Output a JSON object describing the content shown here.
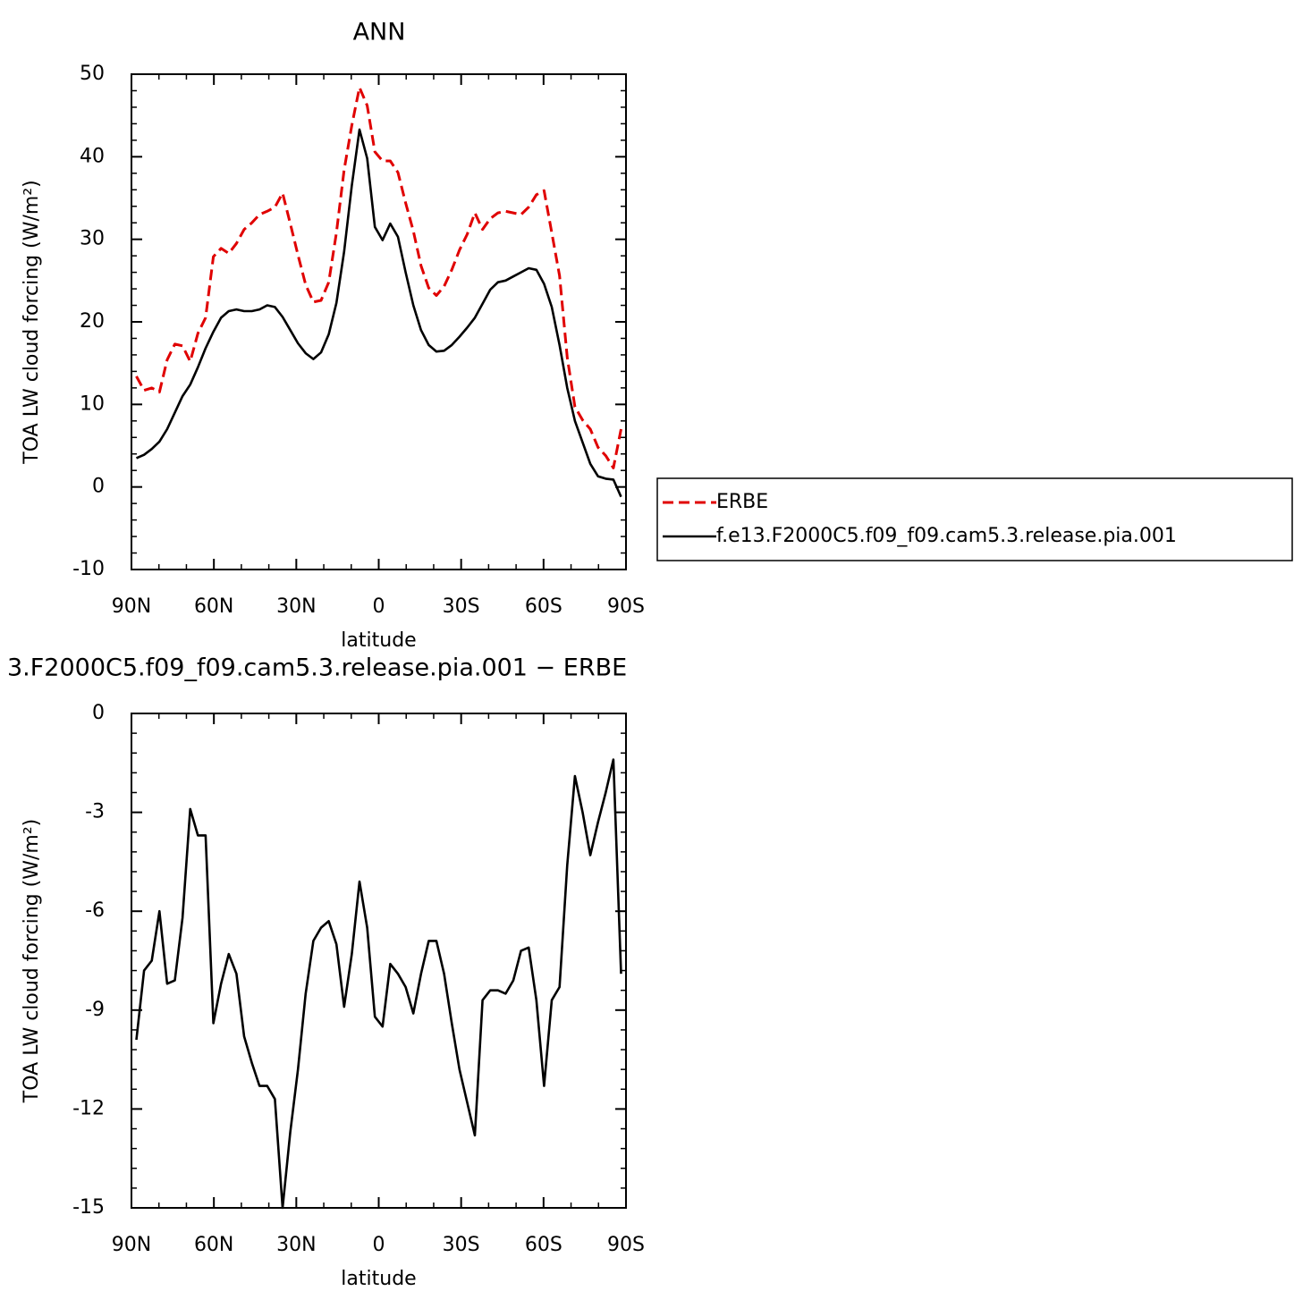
{
  "chart_data": [
    {
      "type": "line",
      "title": "ANN",
      "xlabel": "latitude",
      "ylabel": "TOA LW cloud forcing (W/m²)",
      "x": [
        88.2,
        85.4,
        82.6,
        79.8,
        77.0,
        74.2,
        71.4,
        68.6,
        65.8,
        63.0,
        60.2,
        57.4,
        54.6,
        51.8,
        49.0,
        46.2,
        43.4,
        40.6,
        37.8,
        35.0,
        32.2,
        29.4,
        26.6,
        23.8,
        21.0,
        18.2,
        15.4,
        12.6,
        9.8,
        7.0,
        4.2,
        1.4,
        -1.4,
        -4.2,
        -7.0,
        -9.8,
        -12.6,
        -15.4,
        -18.2,
        -21.0,
        -23.8,
        -26.6,
        -29.4,
        -32.2,
        -35.0,
        -37.8,
        -40.6,
        -43.4,
        -46.2,
        -49.0,
        -51.8,
        -54.6,
        -57.4,
        -60.2,
        -63.0,
        -65.8,
        -68.6,
        -71.4,
        -74.2,
        -77.0,
        -79.8,
        -82.6,
        -85.4,
        -88.2
      ],
      "series": [
        {
          "name": "ERBE",
          "color": "#e00000",
          "dashed": true,
          "values": [
            13.4,
            11.7,
            12.0,
            11.5,
            15.4,
            17.3,
            17.1,
            15.2,
            18.6,
            20.5,
            27.9,
            28.9,
            28.3,
            29.5,
            31.2,
            32.0,
            33.0,
            33.4,
            33.9,
            35.6,
            31.9,
            28.1,
            24.5,
            22.4,
            22.6,
            24.8,
            30.8,
            38.4,
            43.8,
            48.4,
            46.2,
            40.6,
            39.5,
            39.5,
            38.1,
            34.4,
            31.0,
            26.8,
            24.1,
            23.2,
            24.3,
            26.3,
            28.7,
            30.6,
            33.2,
            31.2,
            32.5,
            33.2,
            33.4,
            33.2,
            33.0,
            33.9,
            35.4,
            35.9,
            30.8,
            25.6,
            15.7,
            9.7,
            8.1,
            7.0,
            4.8,
            3.8,
            2.3,
            7.0
          ]
        },
        {
          "name": "f.e13.F2000C5.f09_f09.cam5.3.release.pia.001",
          "color": "#000000",
          "dashed": false,
          "values": [
            3.5,
            3.9,
            4.6,
            5.5,
            7.0,
            9.0,
            11.0,
            12.4,
            14.5,
            16.8,
            18.8,
            20.5,
            21.3,
            21.5,
            21.3,
            21.3,
            21.5,
            22.0,
            21.8,
            20.6,
            19.0,
            17.4,
            16.2,
            15.5,
            16.3,
            18.5,
            22.3,
            28.5,
            36.5,
            43.3,
            39.8,
            31.5,
            29.9,
            31.9,
            30.3,
            26.0,
            22.0,
            19.0,
            17.2,
            16.4,
            16.5,
            17.2,
            18.2,
            19.3,
            20.5,
            22.2,
            23.9,
            24.8,
            25.0,
            25.5,
            26.0,
            26.5,
            26.3,
            24.6,
            21.8,
            17.2,
            12.0,
            8.0,
            5.4,
            2.8,
            1.3,
            1.0,
            0.9,
            -1.2
          ]
        }
      ],
      "xlim": [
        90,
        -90
      ],
      "xticks": [
        {
          "value": 90,
          "label": "90N"
        },
        {
          "value": 60,
          "label": "60N"
        },
        {
          "value": 30,
          "label": "30N"
        },
        0,
        {
          "value": -30,
          "label": "30S"
        },
        {
          "value": -60,
          "label": "60S"
        },
        {
          "value": -90,
          "label": "90S"
        }
      ],
      "xminorticks": [
        80,
        70,
        50,
        40,
        20,
        10,
        -10,
        -20,
        -40,
        -50,
        -70,
        -80
      ],
      "ylim": [
        -10,
        50
      ],
      "yticks": [
        -10,
        0,
        10,
        20,
        30,
        40,
        50
      ],
      "yminorticks": [
        -8,
        -6,
        -4,
        -2,
        2,
        4,
        6,
        8,
        12,
        14,
        16,
        18,
        22,
        24,
        26,
        28,
        32,
        34,
        36,
        38,
        42,
        44,
        46,
        48
      ],
      "legend": "right"
    },
    {
      "type": "line",
      "title": "3.F2000C5.f09_f09.cam5.3.release.pia.001 − ERBE",
      "xlabel": "latitude",
      "ylabel": "TOA LW cloud forcing (W/m²)",
      "x": [
        88.2,
        85.4,
        82.6,
        79.8,
        77.0,
        74.2,
        71.4,
        68.6,
        65.8,
        63.0,
        60.2,
        57.4,
        54.6,
        51.8,
        49.0,
        46.2,
        43.4,
        40.6,
        37.8,
        35.0,
        32.2,
        29.4,
        26.6,
        23.8,
        21.0,
        18.2,
        15.4,
        12.6,
        9.8,
        7.0,
        4.2,
        1.4,
        -1.4,
        -4.2,
        -7.0,
        -9.8,
        -12.6,
        -15.4,
        -18.2,
        -21.0,
        -23.8,
        -26.6,
        -29.4,
        -32.2,
        -35.0,
        -37.8,
        -40.6,
        -43.4,
        -46.2,
        -49.0,
        -51.8,
        -54.6,
        -57.4,
        -60.2,
        -63.0,
        -65.8,
        -68.6,
        -71.4,
        -74.2,
        -77.0,
        -79.8,
        -82.6,
        -85.4,
        -88.2
      ],
      "series": [
        {
          "color": "#000000",
          "dashed": false,
          "values": [
            -9.9,
            -7.8,
            -7.5,
            -6.0,
            -8.2,
            -8.1,
            -6.2,
            -2.9,
            -3.7,
            -3.7,
            -9.4,
            -8.2,
            -7.3,
            -7.9,
            -9.8,
            -10.6,
            -11.3,
            -11.3,
            -11.7,
            -15.0,
            -12.7,
            -10.8,
            -8.5,
            -6.9,
            -6.5,
            -6.3,
            -7.0,
            -8.9,
            -7.3,
            -5.1,
            -6.5,
            -9.2,
            -9.5,
            -7.6,
            -7.9,
            -8.3,
            -9.1,
            -7.9,
            -6.9,
            -6.9,
            -7.9,
            -9.4,
            -10.8,
            -11.8,
            -12.8,
            -8.7,
            -8.4,
            -8.4,
            -8.5,
            -8.1,
            -7.2,
            -7.1,
            -8.7,
            -11.3,
            -8.7,
            -8.3,
            -4.6,
            -1.9,
            -3.0,
            -4.3,
            -3.3,
            -2.4,
            -1.4,
            -7.9
          ]
        }
      ],
      "xlim": [
        90,
        -90
      ],
      "xticks": [
        {
          "value": 90,
          "label": "90N"
        },
        {
          "value": 60,
          "label": "60N"
        },
        {
          "value": 30,
          "label": "30N"
        },
        0,
        {
          "value": -30,
          "label": "30S"
        },
        {
          "value": -60,
          "label": "60S"
        },
        {
          "value": -90,
          "label": "90S"
        }
      ],
      "xminorticks": [
        80,
        70,
        50,
        40,
        20,
        10,
        -10,
        -20,
        -40,
        -50,
        -70,
        -80
      ],
      "ylim": [
        -15,
        0
      ],
      "yticks": [
        -15,
        -12,
        -9,
        -6,
        -3,
        0
      ],
      "yminorticks": [
        -14.4,
        -13.8,
        -13.2,
        -12.6,
        -11.4,
        -10.8,
        -10.2,
        -9.6,
        -8.4,
        -7.8,
        -7.2,
        -6.6,
        -5.4,
        -4.8,
        -4.2,
        -3.6,
        -2.4,
        -1.8,
        -1.2,
        -0.6
      ]
    }
  ]
}
